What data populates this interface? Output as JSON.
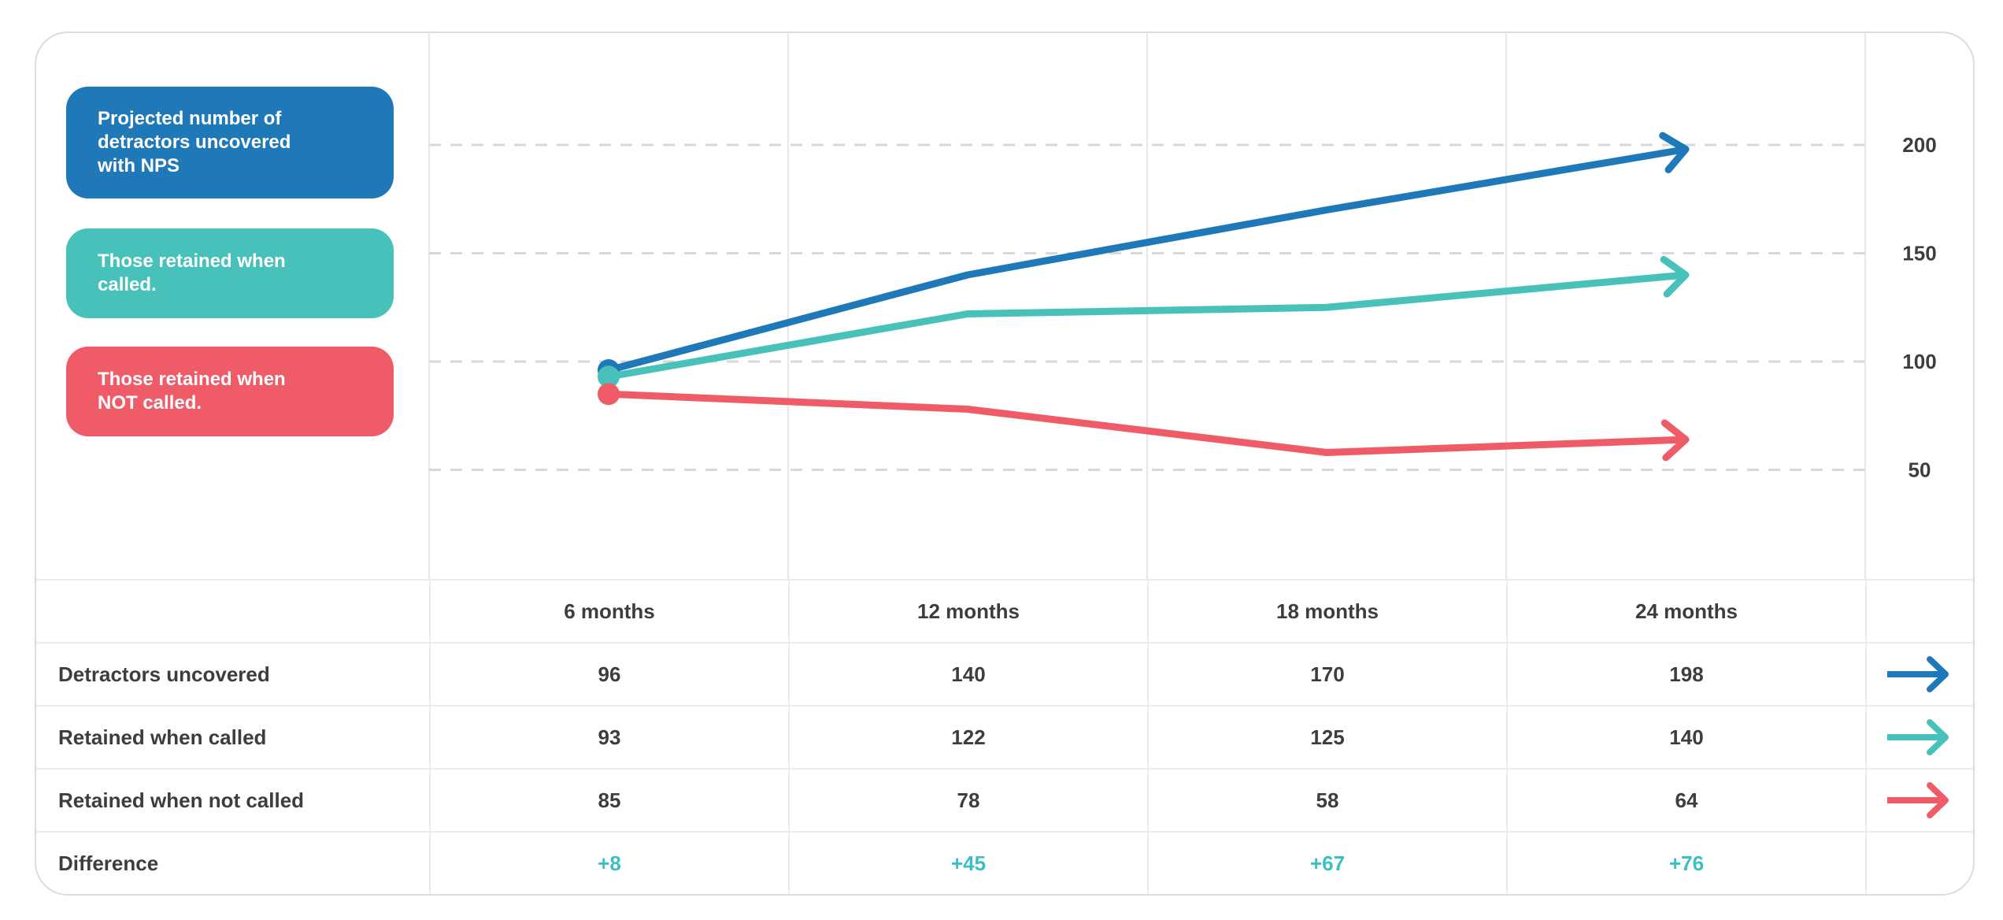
{
  "legend": {
    "items": [
      {
        "label": "Projected number of detractors uncovered with NPS",
        "color": "#1f79b8"
      },
      {
        "label": "Those retained when called.",
        "color": "#48c1bb"
      },
      {
        "label": "Those retained when NOT called.",
        "color": "#ef5c67"
      }
    ]
  },
  "chart_data": {
    "type": "line",
    "categories": [
      "6 months",
      "12 months",
      "18 months",
      "24 months"
    ],
    "series": [
      {
        "name": "Detractors uncovered",
        "color": "#1f79b8",
        "values": [
          96,
          140,
          170,
          198
        ]
      },
      {
        "name": "Retained when called",
        "color": "#48c1bb",
        "values": [
          93,
          122,
          125,
          140
        ]
      },
      {
        "name": "Retained when not called",
        "color": "#ef5c67",
        "values": [
          85,
          78,
          58,
          64
        ]
      }
    ],
    "y_ticks": [
      200,
      150,
      100,
      50
    ],
    "ylim": [
      0,
      250
    ],
    "xlabel": "",
    "ylabel": "",
    "grid": "horizontal-dashed-plus-vertical-solid",
    "legend_position": "left",
    "marker_style": "start-dot-end-arrow"
  },
  "table": {
    "columns": [
      "",
      "6 months",
      "12 months",
      "18 months",
      "24 months",
      ""
    ],
    "rows": [
      {
        "label": "Detractors uncovered",
        "values": [
          "96",
          "140",
          "170",
          "198"
        ]
      },
      {
        "label": "Retained when called",
        "values": [
          "93",
          "122",
          "125",
          "140"
        ]
      },
      {
        "label": "Retained when not called",
        "values": [
          "85",
          "78",
          "58",
          "64"
        ]
      },
      {
        "label": "Difference",
        "values": [
          "+8",
          "+45",
          "+67",
          "+76"
        ]
      }
    ],
    "difference_color": "#3bbfc2"
  },
  "colors": {
    "card_border": "#dcdcdc",
    "grid_dashed": "#d8d8d8",
    "grid_vertical": "#e7e7e7",
    "table_border": "#ebebeb",
    "text_dark": "#3d3d3d"
  }
}
